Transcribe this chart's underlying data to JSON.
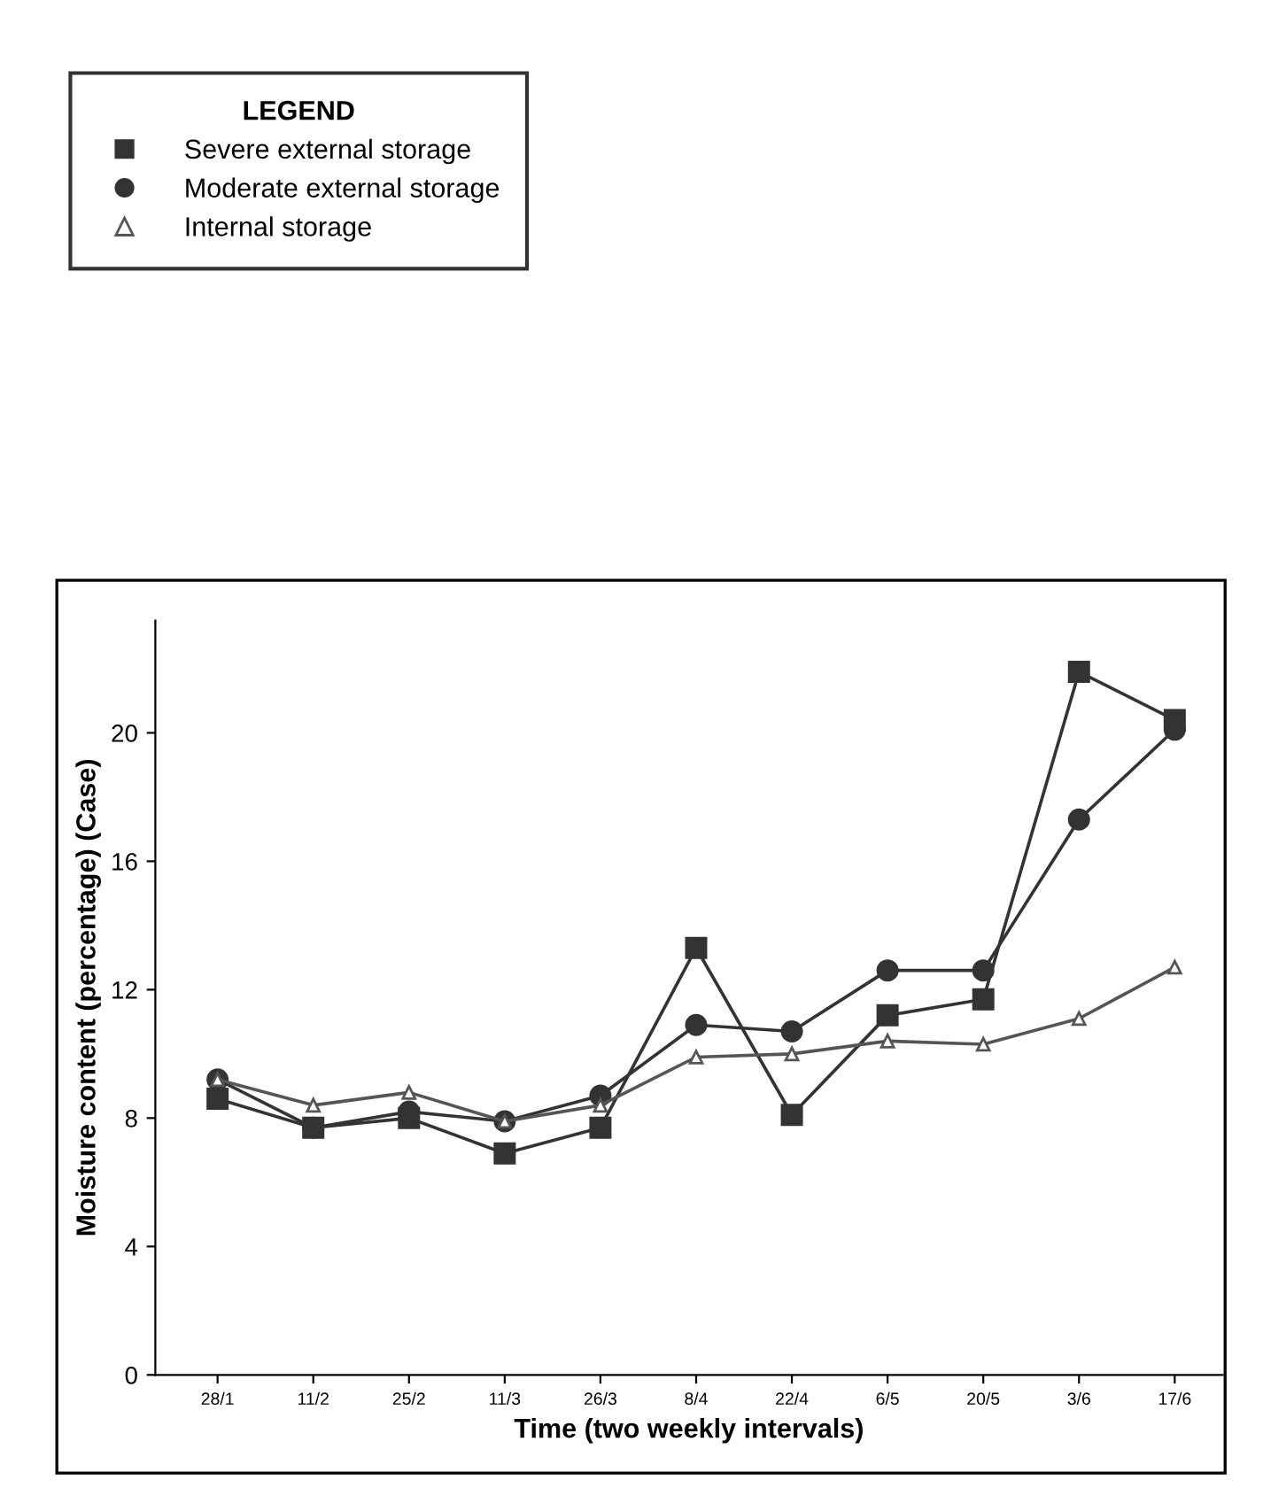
{
  "chart_data": {
    "type": "line",
    "xlabel": "Time (two weekly intervals)",
    "ylabel": "Moisture content (percentage) (Case)",
    "legend_title": "LEGEND",
    "legend": "top left",
    "categories": [
      "28/1",
      "11/2",
      "25/2",
      "11/3",
      "26/3",
      "8/4",
      "22/4",
      "6/5",
      "20/5",
      "3/6",
      "17/6"
    ],
    "series": [
      {
        "name": "Severe external storage",
        "color": "#333333",
        "marker": "square",
        "values": [
          8.6,
          7.7,
          8.0,
          6.9,
          7.7,
          13.3,
          8.1,
          11.2,
          11.7,
          21.9,
          20.4
        ]
      },
      {
        "name": "Moderate external storage",
        "color": "#333333",
        "marker": "circle",
        "values": [
          9.2,
          7.7,
          8.2,
          7.9,
          8.7,
          10.9,
          10.7,
          12.6,
          12.6,
          17.3,
          20.1
        ]
      },
      {
        "name": "Internal storage",
        "color": "#555555",
        "marker": "triangle",
        "values": [
          9.2,
          8.4,
          8.8,
          7.9,
          8.4,
          9.9,
          10.0,
          10.4,
          10.3,
          11.1,
          12.7
        ]
      }
    ],
    "ylim": [
      0,
      23.5
    ],
    "yticks": [
      0,
      4,
      8,
      12,
      16,
      20
    ],
    "grid": false
  }
}
